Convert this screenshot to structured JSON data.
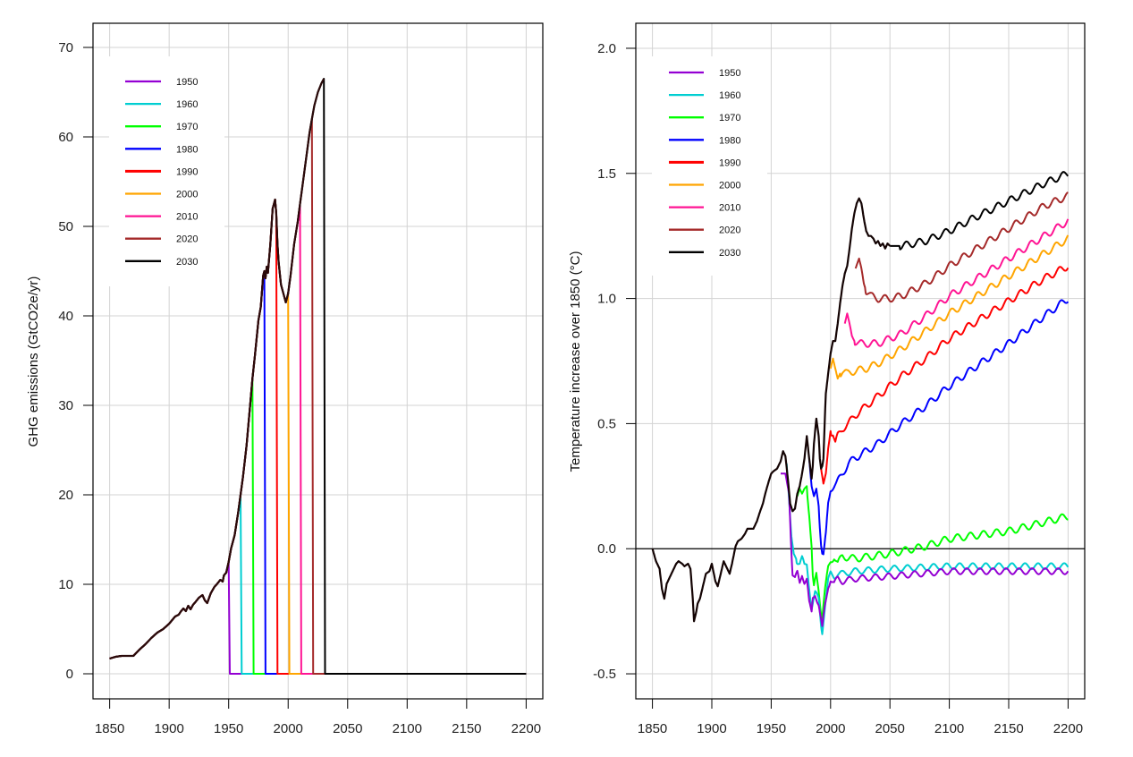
{
  "chart_data": [
    {
      "type": "line",
      "title": "",
      "xlabel": "",
      "ylabel": "GHG emissions (GtCO2e/yr)",
      "xlim": [
        1836,
        2214
      ],
      "ylim": [
        -2.8,
        72.7
      ],
      "xticks": [
        1850,
        1900,
        1950,
        2000,
        2050,
        2100,
        2150,
        2200
      ],
      "yticks": [
        0,
        10,
        20,
        30,
        40,
        50,
        60,
        70
      ],
      "grid": true,
      "legend": {
        "position": "top-left",
        "entries": [
          "1950",
          "1960",
          "1970",
          "1980",
          "1990",
          "2000",
          "2010",
          "2020",
          "2030"
        ]
      },
      "historical": {
        "x": [
          1850,
          1855,
          1860,
          1865,
          1870,
          1875,
          1880,
          1885,
          1890,
          1895,
          1900,
          1905,
          1908,
          1910,
          1912,
          1914,
          1916,
          1918,
          1920,
          1922,
          1925,
          1928,
          1930,
          1932,
          1935,
          1938,
          1940,
          1943,
          1945,
          1946,
          1948,
          1950,
          1952,
          1955,
          1958,
          1960,
          1962,
          1965,
          1968,
          1970,
          1972,
          1975,
          1977,
          1979,
          1980,
          1981,
          1982,
          1983,
          1985,
          1987,
          1988,
          1989,
          1990,
          1991,
          1992,
          1994,
          1996,
          1998,
          2000,
          2002,
          2005,
          2008,
          2010,
          2012,
          2015,
          2018,
          2020,
          2022,
          2025,
          2028,
          2030
        ],
        "y": [
          1.7,
          1.9,
          2.0,
          2.0,
          2.0,
          2.7,
          3.3,
          4.0,
          4.6,
          5.0,
          5.6,
          6.4,
          6.6,
          7.0,
          7.3,
          7.0,
          7.6,
          7.2,
          7.7,
          8.0,
          8.5,
          8.8,
          8.2,
          7.9,
          9.0,
          9.7,
          10.0,
          10.5,
          10.3,
          11.0,
          11.3,
          12.5,
          14.0,
          15.5,
          18.0,
          20.0,
          22.0,
          25.5,
          30.0,
          33.0,
          35.5,
          39.5,
          41.0,
          44.5,
          45.0,
          44.2,
          45.5,
          44.8,
          48.0,
          52.0,
          52.5,
          53.0,
          51.5,
          48.0,
          46.0,
          43.5,
          42.5,
          41.5,
          42.5,
          44.5,
          48.0,
          50.5,
          52.5,
          54.5,
          57.5,
          60.5,
          62.0,
          63.5,
          65.0,
          66.0,
          66.5
        ]
      },
      "series": [
        {
          "name": "1950",
          "color": "#9400D3",
          "cutoff": 1950
        },
        {
          "name": "1960",
          "color": "#00CED1",
          "cutoff": 1960
        },
        {
          "name": "1970",
          "color": "#00FF00",
          "cutoff": 1970
        },
        {
          "name": "1980",
          "color": "#0000FF",
          "cutoff": 1980
        },
        {
          "name": "1990",
          "color": "#FF0000",
          "cutoff": 1990
        },
        {
          "name": "2000",
          "color": "#FFA500",
          "cutoff": 2000
        },
        {
          "name": "2010",
          "color": "#FF1493",
          "cutoff": 2010
        },
        {
          "name": "2020",
          "color": "#A52A2A",
          "cutoff": 2020
        },
        {
          "name": "2030",
          "color": "#000000",
          "cutoff": 2030
        }
      ],
      "post_cutoff_value": 0,
      "x_end": 2200
    },
    {
      "type": "line",
      "title": "",
      "xlabel": "",
      "ylabel": "Temperature increase over 1850 (°C)",
      "xlim": [
        1836,
        2214
      ],
      "ylim": [
        -0.6,
        2.1
      ],
      "xticks": [
        1850,
        1900,
        1950,
        2000,
        2050,
        2100,
        2150,
        2200
      ],
      "yticks": [
        -0.5,
        0.0,
        0.5,
        1.0,
        1.5,
        2.0
      ],
      "ytick_labels": [
        "-0.5",
        "0.0",
        "0.5",
        "1.0",
        "1.5",
        "2.0"
      ],
      "grid": true,
      "hline": 0,
      "legend": {
        "position": "top-left",
        "entries": [
          "1950",
          "1960",
          "1970",
          "1980",
          "1990",
          "2000",
          "2010",
          "2020",
          "2030"
        ]
      },
      "historical": {
        "x": [
          1850,
          1853,
          1856,
          1858,
          1860,
          1862,
          1865,
          1868,
          1870,
          1872,
          1875,
          1877,
          1880,
          1882,
          1884,
          1885,
          1887,
          1888,
          1890,
          1892,
          1895,
          1898,
          1900,
          1903,
          1905,
          1907,
          1910,
          1912,
          1915,
          1917,
          1920,
          1922,
          1925,
          1928,
          1930,
          1932,
          1935,
          1938,
          1940,
          1943,
          1945,
          1948,
          1950,
          1952,
          1955,
          1958,
          1960,
          1962,
          1964,
          1966,
          1968,
          1970,
          1972,
          1974,
          1976,
          1978,
          1980,
          1982,
          1984,
          1985,
          1986,
          1988,
          1990,
          1991,
          1992,
          1993,
          1994,
          1995,
          1996,
          1998,
          2000,
          2002,
          2004,
          2006,
          2008,
          2010,
          2012,
          2014,
          2016,
          2018,
          2020,
          2022,
          2024,
          2026,
          2028,
          2030,
          2032,
          2034,
          2036,
          2038,
          2040,
          2042,
          2044,
          2046,
          2048,
          2050
        ],
        "y": [
          0.0,
          -0.05,
          -0.08,
          -0.16,
          -0.2,
          -0.14,
          -0.11,
          -0.08,
          -0.06,
          -0.05,
          -0.06,
          -0.07,
          -0.06,
          -0.08,
          -0.2,
          -0.29,
          -0.25,
          -0.22,
          -0.2,
          -0.16,
          -0.1,
          -0.09,
          -0.06,
          -0.13,
          -0.15,
          -0.11,
          -0.05,
          -0.07,
          -0.1,
          -0.06,
          0.01,
          0.03,
          0.04,
          0.06,
          0.08,
          0.08,
          0.08,
          0.11,
          0.14,
          0.18,
          0.22,
          0.27,
          0.3,
          0.31,
          0.32,
          0.35,
          0.39,
          0.37,
          0.28,
          0.18,
          0.15,
          0.16,
          0.22,
          0.25,
          0.3,
          0.36,
          0.45,
          0.36,
          0.28,
          0.33,
          0.42,
          0.52,
          0.45,
          0.36,
          0.32,
          0.33,
          0.36,
          0.5,
          0.62,
          0.7,
          0.78,
          0.83,
          0.83,
          0.9,
          0.98,
          1.05,
          1.1,
          1.13,
          1.2,
          1.28,
          1.34,
          1.38,
          1.4,
          1.38,
          1.32,
          1.27,
          1.25,
          1.25,
          1.24,
          1.22,
          1.23,
          1.21,
          1.22,
          1.2,
          1.22,
          1.21
        ]
      },
      "series": [
        {
          "name": "1950",
          "color": "#9400D3",
          "start": 1958,
          "start_value": 0.3,
          "x": [
            1958,
            1962,
            1965,
            1967,
            1968,
            1970,
            1972,
            1974,
            1976,
            1978,
            1980,
            1982,
            1984,
            1985,
            1987,
            1990,
            1993,
            1995,
            1998,
            2000,
            2003,
            2006,
            2010,
            2020,
            2050,
            2100,
            2150,
            2200
          ],
          "y": [
            0.3,
            0.3,
            0.22,
            0.0,
            -0.1,
            -0.12,
            -0.1,
            -0.14,
            -0.1,
            -0.13,
            -0.12,
            -0.22,
            -0.26,
            -0.2,
            -0.18,
            -0.22,
            -0.32,
            -0.24,
            -0.15,
            -0.12,
            -0.14,
            -0.12,
            -0.13,
            -0.12,
            -0.11,
            -0.09,
            -0.09,
            -0.09
          ],
          "osc": 0.012
        },
        {
          "name": "1960",
          "color": "#00CED1",
          "start": 1963,
          "start_value": 0.34,
          "x": [
            1963,
            1965,
            1967,
            1969,
            1970,
            1972,
            1974,
            1976,
            1978,
            1980,
            1982,
            1984,
            1987,
            1990,
            1992,
            1993,
            1995,
            1998,
            2000,
            2003,
            2006,
            2010,
            2020,
            2050,
            2100,
            2150,
            2200
          ],
          "y": [
            0.34,
            0.2,
            0.05,
            -0.02,
            -0.03,
            -0.05,
            -0.06,
            -0.04,
            -0.07,
            -0.06,
            -0.15,
            -0.24,
            -0.18,
            -0.2,
            -0.3,
            -0.33,
            -0.24,
            -0.13,
            -0.1,
            -0.11,
            -0.1,
            -0.1,
            -0.09,
            -0.08,
            -0.07,
            -0.07,
            -0.07
          ],
          "osc": 0.012
        },
        {
          "name": "1970",
          "color": "#00FF00",
          "start": 1972,
          "start_value": 0.21,
          "x": [
            1972,
            1974,
            1976,
            1978,
            1980,
            1982,
            1984,
            1985,
            1986,
            1988,
            1990,
            1992,
            1993,
            1995,
            1998,
            2000,
            2003,
            2006,
            2010,
            2020,
            2050,
            2080,
            2100,
            2150,
            2200
          ],
          "y": [
            0.21,
            0.24,
            0.22,
            0.24,
            0.25,
            0.14,
            0.0,
            -0.12,
            -0.16,
            -0.1,
            -0.16,
            -0.25,
            -0.27,
            -0.18,
            -0.08,
            -0.05,
            -0.03,
            -0.06,
            -0.03,
            -0.04,
            -0.02,
            0.01,
            0.04,
            0.07,
            0.13
          ],
          "osc": 0.014
        },
        {
          "name": "1980",
          "color": "#0000FF",
          "start": 1982,
          "start_value": 0.36,
          "x": [
            1982,
            1984,
            1986,
            1988,
            1990,
            1992,
            1993,
            1994,
            1996,
            1998,
            2000,
            2002,
            2005,
            2010,
            2015,
            2020,
            2030,
            2040,
            2050,
            2060,
            2080,
            2100,
            2120,
            2150,
            2180,
            2200
          ],
          "y": [
            0.36,
            0.25,
            0.21,
            0.24,
            0.17,
            0.02,
            -0.02,
            -0.03,
            0.05,
            0.18,
            0.24,
            0.25,
            0.26,
            0.3,
            0.34,
            0.36,
            0.39,
            0.42,
            0.46,
            0.5,
            0.57,
            0.65,
            0.72,
            0.82,
            0.93,
            1.0
          ],
          "osc": 0.014
        },
        {
          "name": "1990",
          "color": "#FF0000",
          "start": 1992,
          "start_value": 0.32,
          "x": [
            1992,
            1994,
            1996,
            1998,
            2000,
            2002,
            2004,
            2006,
            2010,
            2015,
            2020,
            2030,
            2040,
            2050,
            2060,
            2080,
            2100,
            2120,
            2150,
            2180,
            2200
          ],
          "y": [
            0.32,
            0.26,
            0.3,
            0.4,
            0.47,
            0.46,
            0.42,
            0.45,
            0.48,
            0.5,
            0.53,
            0.57,
            0.61,
            0.65,
            0.69,
            0.76,
            0.84,
            0.9,
            0.99,
            1.08,
            1.13
          ],
          "osc": 0.014
        },
        {
          "name": "2000",
          "color": "#FFA500",
          "start": 2000,
          "start_value": 0.72,
          "x": [
            2000,
            2002,
            2004,
            2006,
            2008,
            2010,
            2014,
            2020,
            2030,
            2040,
            2050,
            2060,
            2080,
            2100,
            2120,
            2150,
            2180,
            2200
          ],
          "y": [
            0.72,
            0.76,
            0.72,
            0.68,
            0.7,
            0.71,
            0.7,
            0.71,
            0.72,
            0.74,
            0.77,
            0.8,
            0.87,
            0.94,
            1.0,
            1.09,
            1.18,
            1.24
          ],
          "osc": 0.014
        },
        {
          "name": "2010",
          "color": "#FF1493",
          "start": 2012,
          "start_value": 0.9,
          "x": [
            2012,
            2014,
            2016,
            2018,
            2020,
            2024,
            2030,
            2040,
            2050,
            2060,
            2080,
            2100,
            2120,
            2150,
            2180,
            2200
          ],
          "y": [
            0.9,
            0.94,
            0.9,
            0.85,
            0.83,
            0.82,
            0.82,
            0.82,
            0.84,
            0.86,
            0.93,
            1.01,
            1.07,
            1.16,
            1.25,
            1.31
          ],
          "osc": 0.014
        },
        {
          "name": "2020",
          "color": "#A52A2A",
          "start": 2021,
          "start_value": 1.12,
          "x": [
            2021,
            2024,
            2026,
            2028,
            2030,
            2034,
            2040,
            2050,
            2060,
            2080,
            2100,
            2120,
            2150,
            2180,
            2200
          ],
          "y": [
            1.12,
            1.16,
            1.12,
            1.06,
            1.03,
            1.01,
            1.0,
            1.0,
            1.01,
            1.06,
            1.13,
            1.19,
            1.28,
            1.37,
            1.41
          ],
          "osc": 0.014
        },
        {
          "name": "2030",
          "color": "#000000",
          "start": 2050,
          "start_value": 1.21,
          "x": [
            2050,
            2060,
            2080,
            2100,
            2120,
            2150,
            2180,
            2200
          ],
          "y": [
            1.21,
            1.21,
            1.23,
            1.27,
            1.32,
            1.39,
            1.46,
            1.5
          ],
          "osc": 0.014
        }
      ]
    }
  ]
}
